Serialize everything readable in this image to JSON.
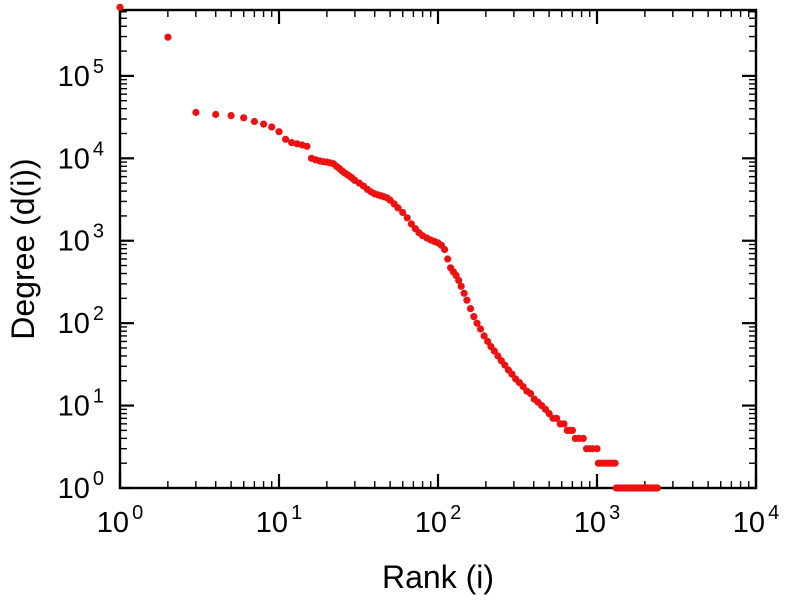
{
  "figure": {
    "background": "#ffffff",
    "frame_color": "#000000",
    "text_color": "#000000"
  },
  "chart_data": {
    "type": "scatter",
    "title": "",
    "xlabel": "Rank (i)",
    "ylabel": "Degree (d(i))",
    "x_scale": "log",
    "y_scale": "log",
    "xlim": [
      1,
      10000
    ],
    "ylim": [
      1,
      630000
    ],
    "x_tick_exponents": [
      0,
      1,
      2,
      3,
      4
    ],
    "y_tick_exponents": [
      0,
      1,
      2,
      3,
      4,
      5
    ],
    "tick_base": "10",
    "grid": false,
    "legend": "none",
    "marker": "circle",
    "point_color": "#ee1111",
    "points": [
      [
        1,
        680000
      ],
      [
        2,
        295000
      ],
      [
        3,
        36000
      ],
      [
        4,
        34000
      ],
      [
        5,
        33000
      ],
      [
        6,
        31000
      ],
      [
        7,
        28000
      ],
      [
        8,
        26000
      ],
      [
        9,
        24000
      ],
      [
        10,
        21000
      ],
      [
        11,
        17000
      ],
      [
        12,
        15500
      ],
      [
        13,
        15000
      ],
      [
        14,
        14500
      ],
      [
        15,
        14000
      ],
      [
        16,
        10000
      ],
      [
        17,
        9600
      ],
      [
        18,
        9300
      ],
      [
        19,
        9100
      ],
      [
        20,
        9000
      ],
      [
        21,
        8800
      ],
      [
        22,
        8600
      ],
      [
        23,
        8000
      ],
      [
        24,
        7500
      ],
      [
        25,
        7000
      ],
      [
        26,
        6600
      ],
      [
        27,
        6300
      ],
      [
        28,
        6000
      ],
      [
        29,
        5700
      ],
      [
        30,
        5400
      ],
      [
        32,
        5000
      ],
      [
        34,
        4600
      ],
      [
        36,
        4200
      ],
      [
        38,
        3900
      ],
      [
        40,
        3700
      ],
      [
        42,
        3600
      ],
      [
        44,
        3500
      ],
      [
        46,
        3400
      ],
      [
        48,
        3300
      ],
      [
        50,
        3100
      ],
      [
        53,
        2800
      ],
      [
        56,
        2500
      ],
      [
        60,
        2200
      ],
      [
        64,
        1900
      ],
      [
        68,
        1600
      ],
      [
        72,
        1400
      ],
      [
        76,
        1250
      ],
      [
        80,
        1150
      ],
      [
        85,
        1080
      ],
      [
        90,
        1020
      ],
      [
        95,
        980
      ],
      [
        100,
        940
      ],
      [
        105,
        880
      ],
      [
        110,
        780
      ],
      [
        115,
        600
      ],
      [
        120,
        470
      ],
      [
        125,
        420
      ],
      [
        130,
        380
      ],
      [
        135,
        330
      ],
      [
        140,
        280
      ],
      [
        146,
        230
      ],
      [
        152,
        190
      ],
      [
        160,
        150
      ],
      [
        168,
        120
      ],
      [
        176,
        100
      ],
      [
        185,
        85
      ],
      [
        195,
        70
      ],
      [
        205,
        60
      ],
      [
        215,
        52
      ],
      [
        226,
        46
      ],
      [
        238,
        40
      ],
      [
        250,
        35
      ],
      [
        263,
        31
      ],
      [
        277,
        27
      ],
      [
        292,
        24
      ],
      [
        308,
        21
      ],
      [
        325,
        19
      ],
      [
        343,
        17
      ],
      [
        362,
        15
      ],
      [
        382,
        14
      ],
      [
        403,
        12
      ],
      [
        425,
        11
      ],
      [
        449,
        10
      ],
      [
        474,
        9
      ],
      [
        500,
        8
      ],
      [
        528,
        7
      ],
      [
        557,
        7
      ],
      [
        588,
        6
      ],
      [
        620,
        6
      ],
      [
        650,
        5
      ],
      [
        680,
        5
      ],
      [
        700,
        5
      ],
      [
        730,
        4
      ],
      [
        770,
        4
      ],
      [
        820,
        4
      ],
      [
        860,
        3
      ],
      [
        900,
        3
      ],
      [
        940,
        3
      ],
      [
        1000,
        3
      ],
      [
        1020,
        2
      ],
      [
        1060,
        2
      ],
      [
        1100,
        2
      ],
      [
        1140,
        2
      ],
      [
        1180,
        2
      ],
      [
        1220,
        2
      ],
      [
        1260,
        2
      ],
      [
        1300,
        2
      ],
      [
        1320,
        1
      ],
      [
        1360,
        1
      ],
      [
        1400,
        1
      ],
      [
        1440,
        1
      ],
      [
        1480,
        1
      ],
      [
        1520,
        1
      ],
      [
        1560,
        1
      ],
      [
        1600,
        1
      ],
      [
        1640,
        1
      ],
      [
        1680,
        1
      ],
      [
        1720,
        1
      ],
      [
        1760,
        1
      ],
      [
        1800,
        1
      ],
      [
        1840,
        1
      ],
      [
        1880,
        1
      ],
      [
        1920,
        1
      ],
      [
        1960,
        1
      ],
      [
        2000,
        1
      ],
      [
        2040,
        1
      ],
      [
        2080,
        1
      ],
      [
        2120,
        1
      ],
      [
        2160,
        1
      ],
      [
        2200,
        1
      ],
      [
        2240,
        1
      ],
      [
        2280,
        1
      ],
      [
        2320,
        1
      ],
      [
        2360,
        1
      ],
      [
        2400,
        1
      ]
    ]
  }
}
